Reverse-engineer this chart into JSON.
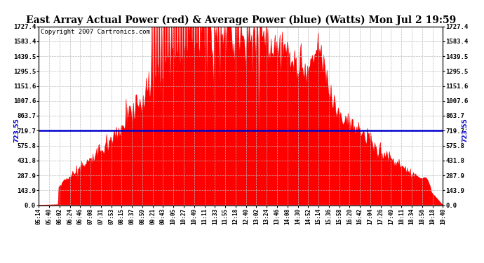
{
  "title": "East Array Actual Power (red) & Average Power (blue) (Watts) Mon Jul 2 19:59",
  "copyright": "Copyright 2007 Cartronics.com",
  "avg_power": 723.55,
  "y_max": 1727.4,
  "y_ticks": [
    0.0,
    143.9,
    287.9,
    431.8,
    575.8,
    719.7,
    863.7,
    1007.6,
    1151.6,
    1295.5,
    1439.5,
    1583.4,
    1727.4
  ],
  "y_tick_labels": [
    "0.0",
    "143.9",
    "287.9",
    "431.8",
    "575.8",
    "719.7",
    "863.7",
    "1007.6",
    "1151.6",
    "1295.5",
    "1439.5",
    "1583.4",
    "1727.4"
  ],
  "x_labels": [
    "05:14",
    "05:40",
    "06:02",
    "06:24",
    "06:46",
    "07:08",
    "07:31",
    "07:53",
    "08:15",
    "08:37",
    "08:59",
    "09:21",
    "09:43",
    "10:05",
    "10:27",
    "10:49",
    "11:11",
    "11:33",
    "11:55",
    "12:18",
    "12:40",
    "13:02",
    "13:24",
    "13:46",
    "14:08",
    "14:30",
    "14:52",
    "15:14",
    "15:36",
    "15:58",
    "16:20",
    "16:42",
    "17:04",
    "17:26",
    "17:49",
    "18:11",
    "18:34",
    "18:56",
    "19:18",
    "19:40"
  ],
  "background_color": "#ffffff",
  "grid_color": "#bbbbbb",
  "fill_color": "#ff0000",
  "avg_line_color": "#0000cc",
  "title_fontsize": 10,
  "avg_label_fontsize": 7,
  "copyright_fontsize": 6.5,
  "peak_power": 1727.4,
  "noise_seed": 12
}
